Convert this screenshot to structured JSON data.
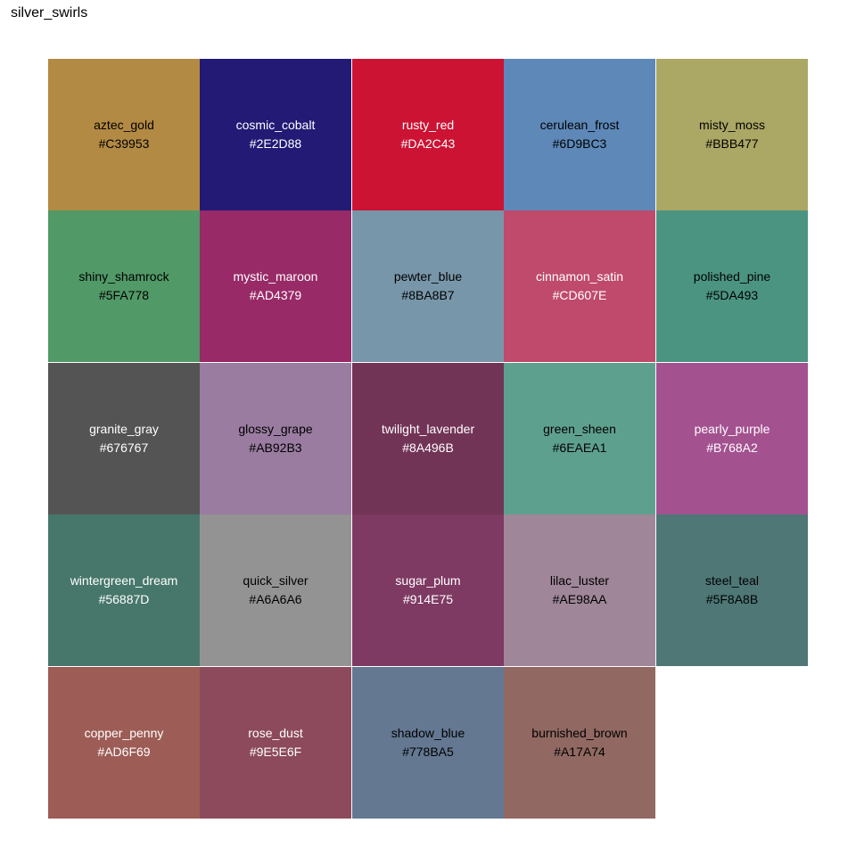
{
  "title": "silver_swirls",
  "chart_data": {
    "type": "table",
    "title": "silver_swirls",
    "columns": 5,
    "swatches": [
      {
        "name": "aztec_gold",
        "hex": "#C39953",
        "fill": "#B38A43",
        "text_color": "#000000"
      },
      {
        "name": "cosmic_cobalt",
        "hex": "#2E2D88",
        "fill": "#221A75",
        "text_color": "#FFFFFF"
      },
      {
        "name": "rusty_red",
        "hex": "#DA2C43",
        "fill": "#CC1334",
        "text_color": "#FFFFFF"
      },
      {
        "name": "cerulean_frost",
        "hex": "#6D9BC3",
        "fill": "#5D88B8",
        "text_color": "#000000"
      },
      {
        "name": "misty_moss",
        "hex": "#BBB477",
        "fill": "#ABA764",
        "text_color": "#000000"
      },
      {
        "name": "shiny_shamrock",
        "hex": "#5FA778",
        "fill": "#519967",
        "text_color": "#000000"
      },
      {
        "name": "mystic_maroon",
        "hex": "#AD4379",
        "fill": "#982A67",
        "text_color": "#FFFFFF"
      },
      {
        "name": "pewter_blue",
        "hex": "#8BA8B7",
        "fill": "#7896A9",
        "text_color": "#000000"
      },
      {
        "name": "cinnamon_satin",
        "hex": "#CD607E",
        "fill": "#BF4A6C",
        "text_color": "#FFFFFF"
      },
      {
        "name": "polished_pine",
        "hex": "#5DA493",
        "fill": "#4B9481",
        "text_color": "#000000"
      },
      {
        "name": "granite_gray",
        "hex": "#676767",
        "fill": "#545454",
        "text_color": "#FFFFFF"
      },
      {
        "name": "glossy_grape",
        "hex": "#AB92B3",
        "fill": "#9A7CA1",
        "text_color": "#000000"
      },
      {
        "name": "twilight_lavender",
        "hex": "#8A496B",
        "fill": "#723456",
        "text_color": "#FFFFFF"
      },
      {
        "name": "green_sheen",
        "hex": "#6EAEA1",
        "fill": "#5EA08E",
        "text_color": "#000000"
      },
      {
        "name": "pearly_purple",
        "hex": "#B768A2",
        "fill": "#A45190",
        "text_color": "#FFFFFF"
      },
      {
        "name": "wintergreen_dream",
        "hex": "#56887D",
        "fill": "#46776A",
        "text_color": "#FFFFFF"
      },
      {
        "name": "quick_silver",
        "hex": "#A6A6A6",
        "fill": "#939393",
        "text_color": "#000000"
      },
      {
        "name": "sugar_plum",
        "hex": "#914E75",
        "fill": "#7E3A63",
        "text_color": "#FFFFFF"
      },
      {
        "name": "lilac_luster",
        "hex": "#AE98AA",
        "fill": "#9F8698",
        "text_color": "#000000"
      },
      {
        "name": "steel_teal",
        "hex": "#5F8A8B",
        "fill": "#4E7776",
        "text_color": "#000000"
      },
      {
        "name": "copper_penny",
        "hex": "#AD6F69",
        "fill": "#9D5C56",
        "text_color": "#FFFFFF"
      },
      {
        "name": "rose_dust",
        "hex": "#9E5E6F",
        "fill": "#8C4A5C",
        "text_color": "#FFFFFF"
      },
      {
        "name": "shadow_blue",
        "hex": "#778BA5",
        "fill": "#647892",
        "text_color": "#000000"
      },
      {
        "name": "burnished_brown",
        "hex": "#A17A74",
        "fill": "#916962",
        "text_color": "#000000"
      }
    ]
  }
}
